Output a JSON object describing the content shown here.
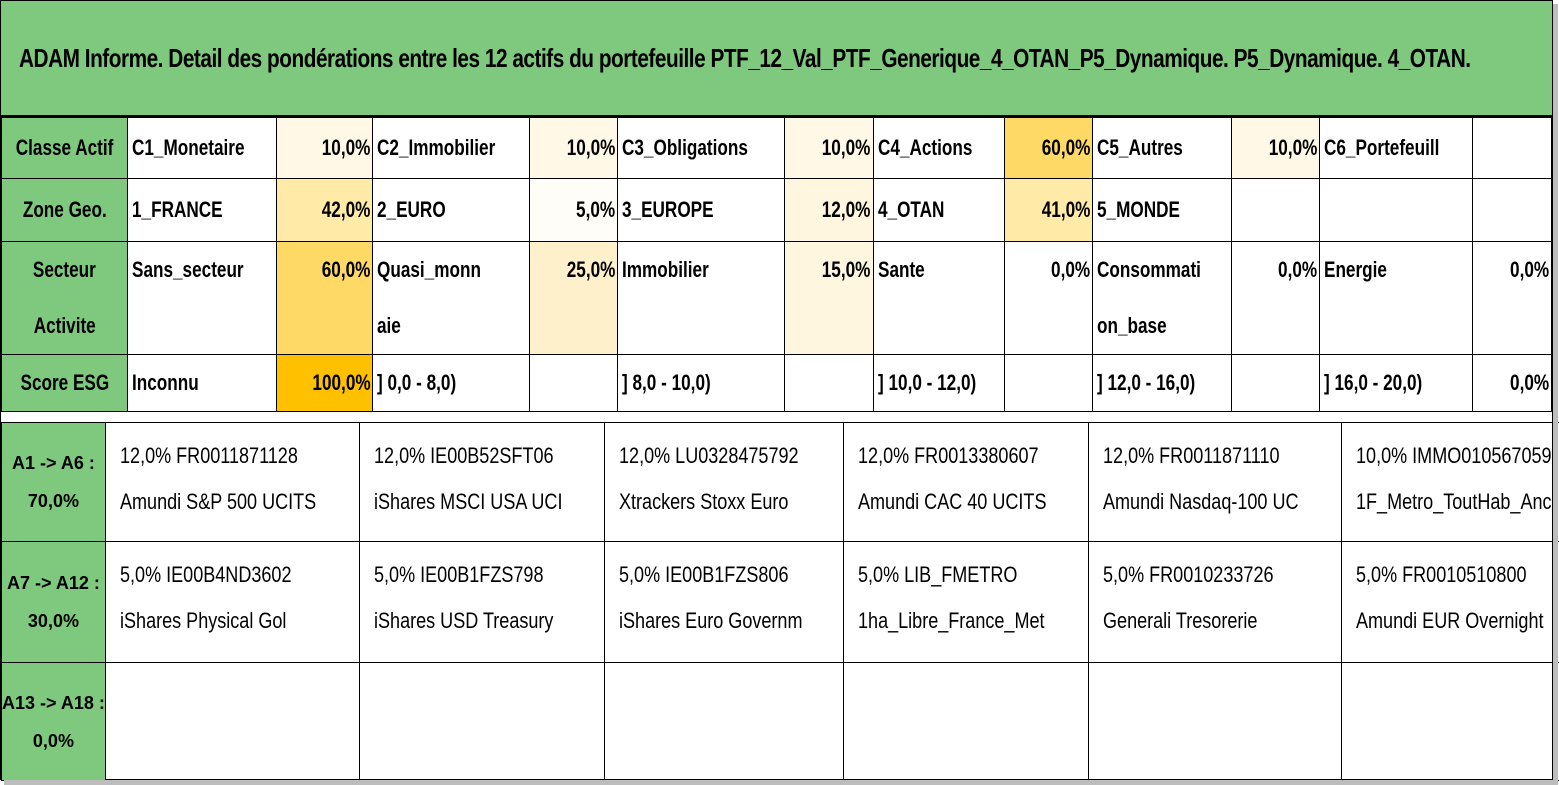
{
  "title": "ADAM Informe. Detail des pondérations entre les 12 actifs du portefeuille PTF_12_Val_PTF_Generique_4_OTAN_P5_Dynamique. P5_Dynamique. 4_OTAN.",
  "colors": {
    "header_green": "#7fc97f",
    "weight_light": "#fff8e6",
    "weight_mid": "#ffeaa8",
    "weight_strong": "#ffd966",
    "weight_max": "#ffc000"
  },
  "classe_actif": {
    "label": "Classe Actif",
    "items": [
      {
        "name": "C1_Monetaire",
        "pct": "10,0%"
      },
      {
        "name": "C2_Immobilier",
        "pct": "10,0%"
      },
      {
        "name": "C3_Obligations",
        "pct": "10,0%"
      },
      {
        "name": "C4_Actions",
        "pct": "60,0%"
      },
      {
        "name": "C5_Autres",
        "pct": "10,0%"
      },
      {
        "name": "C6_Portefeuill",
        "pct": ""
      }
    ]
  },
  "zone_geo": {
    "label": "Zone Geo.",
    "items": [
      {
        "name": "1_FRANCE",
        "pct": "42,0%"
      },
      {
        "name": "2_EURO",
        "pct": "5,0%"
      },
      {
        "name": "3_EUROPE",
        "pct": "12,0%"
      },
      {
        "name": "4_OTAN",
        "pct": "41,0%"
      },
      {
        "name": "5_MONDE",
        "pct": ""
      },
      {
        "name": "",
        "pct": ""
      }
    ]
  },
  "secteur": {
    "label_line1": "Secteur",
    "label_line2": "Activite",
    "items": [
      {
        "name1": "Sans_secteur",
        "name2": "",
        "pct": "60,0%"
      },
      {
        "name1": "Quasi_monn",
        "name2": "aie",
        "pct": "25,0%"
      },
      {
        "name1": "Immobilier",
        "name2": "",
        "pct": "15,0%"
      },
      {
        "name1": "Sante",
        "name2": "",
        "pct": "0,0%"
      },
      {
        "name1": "Consommati",
        "name2": "on_base",
        "pct": "0,0%"
      },
      {
        "name1": "Energie",
        "name2": "",
        "pct": "0,0%"
      }
    ]
  },
  "score_esg": {
    "label": "Score ESG",
    "items": [
      {
        "name": "Inconnu",
        "pct": "100,0%"
      },
      {
        "name": "] 0,0 - 8,0)",
        "pct": ""
      },
      {
        "name": "] 8,0 - 10,0)",
        "pct": ""
      },
      {
        "name": "] 10,0 - 12,0)",
        "pct": ""
      },
      {
        "name": "] 12,0 - 16,0)",
        "pct": ""
      },
      {
        "name": "] 16,0 - 20,0)",
        "pct": "0,0%"
      }
    ]
  },
  "asset_groups": [
    {
      "label_line1": "A1 -> A6 :",
      "label_line2": "70,0%",
      "assets": [
        {
          "line1": "12,0% FR0011871128",
          "line2": "Amundi S&P 500 UCITS"
        },
        {
          "line1": "12,0% IE00B52SFT06",
          "line2": "iShares MSCI USA UCI"
        },
        {
          "line1": "12,0% LU0328475792",
          "line2": "Xtrackers Stoxx Euro"
        },
        {
          "line1": "12,0% FR0013380607",
          "line2": "Amundi CAC 40 UCITS"
        },
        {
          "line1": "12,0% FR0011871110",
          "line2": "Amundi Nasdaq-100 UC"
        },
        {
          "line1": "10,0% IMMO010567059",
          "line2": "1F_Metro_ToutHab_Anc"
        }
      ]
    },
    {
      "label_line1": "A7 -> A12 :",
      "label_line2": "30,0%",
      "assets": [
        {
          "line1": "5,0% IE00B4ND3602",
          "line2": "iShares Physical Gol"
        },
        {
          "line1": "5,0% IE00B1FZS798",
          "line2": "iShares USD Treasury"
        },
        {
          "line1": "5,0% IE00B1FZS806",
          "line2": "iShares Euro Governm"
        },
        {
          "line1": "5,0% LIB_FMETRO",
          "line2": "1ha_Libre_France_Met"
        },
        {
          "line1": "5,0% FR0010233726",
          "line2": "Generali Tresorerie"
        },
        {
          "line1": "5,0% FR0010510800",
          "line2": "Amundi EUR Overnight"
        }
      ]
    },
    {
      "label_line1": "A13 -> A18 :",
      "label_line2": "0,0%",
      "assets": [
        {
          "line1": "",
          "line2": ""
        },
        {
          "line1": "",
          "line2": ""
        },
        {
          "line1": "",
          "line2": ""
        },
        {
          "line1": "",
          "line2": ""
        },
        {
          "line1": "",
          "line2": ""
        },
        {
          "line1": "",
          "line2": ""
        }
      ]
    }
  ]
}
